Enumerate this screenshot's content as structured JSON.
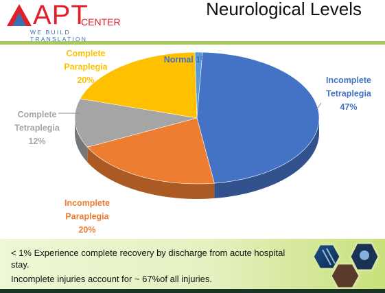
{
  "header": {
    "logo_text": "APT",
    "logo_suffix": "CENTER",
    "logo_tagline": "WE BUILD TRANSLATION",
    "title": "Neurological Levels"
  },
  "colors": {
    "accent_rule": "#a6c95a",
    "logo_red": "#e0202a",
    "logo_blue": "#3a6fb3"
  },
  "chart_data": {
    "type": "pie",
    "style": "3d",
    "categories": [
      "Normal",
      "Incomplete Tetraplegia",
      "Incomplete Paraplegia",
      "Complete Tetraplegia",
      "Complete Paraplegia"
    ],
    "values": [
      1,
      47,
      20,
      12,
      20
    ],
    "colors": [
      "#5b9bd5",
      "#4472c4",
      "#ed7d31",
      "#a5a5a5",
      "#ffc000"
    ],
    "label_colors": [
      "#4472c4",
      "#4472c4",
      "#ed7d31",
      "#a5a5a5",
      "#ffc000"
    ],
    "labels": [
      [
        "Normal 1%"
      ],
      [
        "Incomplete",
        "Tetraplegia",
        "47%"
      ],
      [
        "Incomplete",
        "Paraplegia",
        "20%"
      ],
      [
        "Complete",
        "Tetraplegia",
        "12%"
      ],
      [
        "Complete",
        "Paraplegia",
        "20%"
      ]
    ]
  },
  "footer": {
    "line1": "< 1% Experience complete recovery by discharge from acute hospital stay.",
    "line2": "Incomplete injuries account for ~ 67%of all injuries."
  }
}
